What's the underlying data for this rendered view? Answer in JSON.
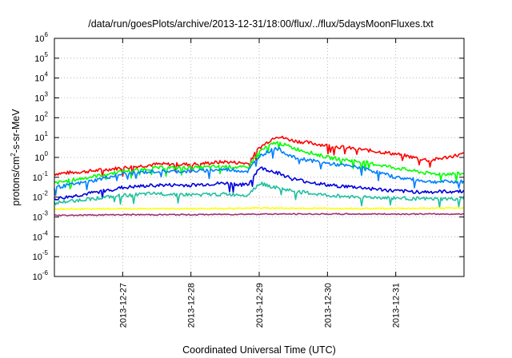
{
  "chart_data": {
    "type": "line",
    "title": "/data/run/goesPlots/archive/2013-12-31/18:00/flux/../flux/5daysMoonFluxes.txt",
    "xlabel": "Coordinated Universal Time (UTC)",
    "ylabel": "protons/cm2-s-sr-MeV",
    "ylabel_parts": {
      "pre": "protons/cm",
      "sup": "2",
      "post": "-s-sr-MeV"
    },
    "x_ticks": [
      "2013-12-27",
      "2013-12-28",
      "2013-12-29",
      "2013-12-30",
      "2013-12-31"
    ],
    "y_scale": "log",
    "ylim": [
      1e-06,
      1000000.0
    ],
    "xlim": [
      "2013-12-26",
      "2014-01-01"
    ],
    "grid": true,
    "series": [
      {
        "color": "#ff0000",
        "x": [
          "2013-12-26 00:00",
          "2013-12-26 12:00",
          "2013-12-27 00:00",
          "2013-12-27 12:00",
          "2013-12-28 00:00",
          "2013-12-28 12:00",
          "2013-12-28 20:00",
          "2013-12-29 00:00",
          "2013-12-29 06:00",
          "2013-12-29 12:00",
          "2013-12-30 00:00",
          "2013-12-30 12:00",
          "2013-12-31 00:00",
          "2013-12-31 12:00",
          "2014-01-01 00:00"
        ],
        "y": [
          0.15,
          0.2,
          0.3,
          0.45,
          0.45,
          0.6,
          0.5,
          3,
          12,
          7,
          4,
          2.5,
          1.5,
          0.7,
          1.5
        ]
      },
      {
        "color": "#00ff00",
        "x": [
          "2013-12-26 00:00",
          "2013-12-26 12:00",
          "2013-12-27 00:00",
          "2013-12-27 12:00",
          "2013-12-28 00:00",
          "2013-12-28 12:00",
          "2013-12-28 20:00",
          "2013-12-29 00:00",
          "2013-12-29 06:00",
          "2013-12-29 12:00",
          "2013-12-30 00:00",
          "2013-12-30 12:00",
          "2013-12-31 00:00",
          "2013-12-31 12:00",
          "2014-01-01 00:00"
        ],
        "y": [
          0.05,
          0.1,
          0.2,
          0.3,
          0.3,
          0.35,
          0.3,
          2,
          6,
          3,
          1,
          0.6,
          0.3,
          0.15,
          0.15
        ]
      },
      {
        "color": "#0080ff",
        "x": [
          "2013-12-26 00:00",
          "2013-12-26 12:00",
          "2013-12-27 00:00",
          "2013-12-27 12:00",
          "2013-12-28 00:00",
          "2013-12-28 12:00",
          "2013-12-28 20:00",
          "2013-12-29 00:00",
          "2013-12-29 06:00",
          "2013-12-29 12:00",
          "2013-12-30 00:00",
          "2013-12-30 12:00",
          "2013-12-31 00:00",
          "2013-12-31 12:00",
          "2014-01-01 00:00"
        ],
        "y": [
          0.03,
          0.06,
          0.15,
          0.2,
          0.2,
          0.25,
          0.2,
          1.2,
          3,
          1,
          0.5,
          0.3,
          0.1,
          0.06,
          0.06
        ]
      },
      {
        "color": "#0000dd",
        "x": [
          "2013-12-26 00:00",
          "2013-12-26 12:00",
          "2013-12-27 00:00",
          "2013-12-27 12:00",
          "2013-12-28 00:00",
          "2013-12-28 12:00",
          "2013-12-28 20:00",
          "2013-12-29 00:00",
          "2013-12-29 06:00",
          "2013-12-29 12:00",
          "2013-12-30 00:00",
          "2013-12-30 12:00",
          "2013-12-31 00:00",
          "2013-12-31 12:00",
          "2014-01-01 00:00"
        ],
        "y": [
          0.008,
          0.015,
          0.03,
          0.04,
          0.04,
          0.05,
          0.04,
          0.3,
          0.18,
          0.08,
          0.04,
          0.03,
          0.02,
          0.018,
          0.02
        ]
      },
      {
        "color": "#20c0a0",
        "x": [
          "2013-12-26 00:00",
          "2013-12-26 12:00",
          "2013-12-27 00:00",
          "2013-12-27 12:00",
          "2013-12-28 00:00",
          "2013-12-28 12:00",
          "2013-12-28 20:00",
          "2013-12-29 00:00",
          "2013-12-29 06:00",
          "2013-12-29 12:00",
          "2013-12-30 00:00",
          "2013-12-30 12:00",
          "2013-12-31 00:00",
          "2013-12-31 12:00",
          "2014-01-01 00:00"
        ],
        "y": [
          0.005,
          0.008,
          0.012,
          0.015,
          0.013,
          0.014,
          0.013,
          0.05,
          0.03,
          0.02,
          0.012,
          0.01,
          0.009,
          0.008,
          0.008
        ]
      },
      {
        "color": "#ffff00",
        "x": [
          "2013-12-26 00:00",
          "2013-12-27 00:00",
          "2013-12-28 00:00",
          "2013-12-29 00:00",
          "2013-12-30 00:00",
          "2013-12-31 00:00",
          "2014-01-01 00:00"
        ],
        "y": [
          0.0025,
          0.0026,
          0.0026,
          0.0028,
          0.0027,
          0.0027,
          0.0028
        ]
      },
      {
        "color": "#a03070",
        "x": [
          "2013-12-26 00:00",
          "2013-12-27 00:00",
          "2013-12-28 00:00",
          "2013-12-29 00:00",
          "2013-12-30 00:00",
          "2013-12-31 00:00",
          "2014-01-01 00:00"
        ],
        "y": [
          0.0012,
          0.0013,
          0.0013,
          0.0014,
          0.0014,
          0.0014,
          0.0014
        ]
      }
    ]
  }
}
